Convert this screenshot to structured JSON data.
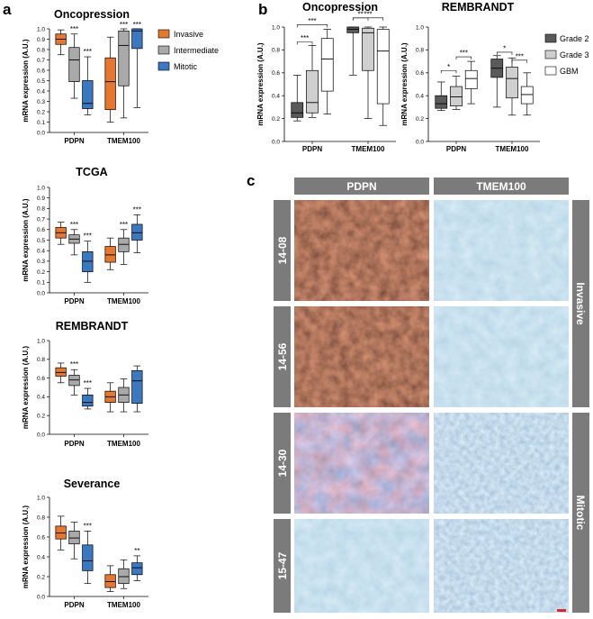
{
  "panels": {
    "a": "a",
    "b": "b",
    "c": "c"
  },
  "y_axis_label": "mRNA expression (A.U.)",
  "legend_a": [
    "Invasive",
    "Intermediate",
    "Mitotic"
  ],
  "legend_b": [
    "Grade 2",
    "Grade 3",
    "GBM"
  ],
  "colors": {
    "invasive": "#e8772e",
    "intermediate": "#a9a9a9",
    "mitotic": "#3b78c2",
    "grade2": "#5a5a5a",
    "grade3": "#cfcfcf",
    "gbm": "#ffffff"
  },
  "chart_data": [
    {
      "type": "box",
      "panel": "a",
      "title": "Oncopression",
      "ylabel": "mRNA expression (A.U.)",
      "ylim": [
        0,
        1.0
      ],
      "yticks": [
        "0.0",
        "0.1",
        "0.2",
        "0.3",
        "0.4",
        "0.5",
        "0.6",
        "0.7",
        "0.8",
        "0.9",
        "1.0"
      ],
      "groups": [
        "PDPN",
        "TMEM100"
      ],
      "series": [
        {
          "name": "Invasive",
          "boxes": [
            {
              "min": 0.75,
              "q1": 0.85,
              "median": 0.9,
              "q3": 0.95,
              "max": 0.99
            },
            {
              "min": 0.1,
              "q1": 0.22,
              "median": 0.49,
              "q3": 0.72,
              "max": 0.92
            }
          ]
        },
        {
          "name": "Intermediate",
          "boxes": [
            {
              "min": 0.33,
              "q1": 0.49,
              "median": 0.7,
              "q3": 0.82,
              "max": 0.95
            },
            {
              "min": 0.14,
              "q1": 0.45,
              "median": 0.84,
              "q3": 0.98,
              "max": 1.0
            }
          ]
        },
        {
          "name": "Mitotic",
          "boxes": [
            {
              "min": 0.17,
              "q1": 0.23,
              "median": 0.28,
              "q3": 0.5,
              "max": 0.73
            },
            {
              "min": 0.24,
              "q1": 0.81,
              "median": 0.98,
              "q3": 1.0,
              "max": 1.0
            }
          ]
        }
      ],
      "annotations": [
        {
          "group": 0,
          "series": 1,
          "text": "***"
        },
        {
          "group": 0,
          "series": 2,
          "text": "***"
        },
        {
          "group": 1,
          "series": 1,
          "text": "***"
        },
        {
          "group": 1,
          "series": 2,
          "text": "***"
        }
      ]
    },
    {
      "type": "box",
      "panel": "a",
      "title": "TCGA",
      "ylabel": "mRNA expression (A.U.)",
      "ylim": [
        0,
        1.0
      ],
      "yticks": [
        "0.0",
        "0.1",
        "0.2",
        "0.3",
        "0.4",
        "0.5",
        "0.6",
        "0.7",
        "0.8",
        "0.9",
        "1.0"
      ],
      "groups": [
        "PDPN",
        "TMEM100"
      ],
      "series": [
        {
          "name": "Invasive",
          "boxes": [
            {
              "min": 0.46,
              "q1": 0.52,
              "median": 0.57,
              "q3": 0.62,
              "max": 0.67
            },
            {
              "min": 0.22,
              "q1": 0.29,
              "median": 0.36,
              "q3": 0.44,
              "max": 0.52
            }
          ]
        },
        {
          "name": "Intermediate",
          "boxes": [
            {
              "min": 0.36,
              "q1": 0.47,
              "median": 0.51,
              "q3": 0.55,
              "max": 0.6
            },
            {
              "min": 0.27,
              "q1": 0.39,
              "median": 0.46,
              "q3": 0.52,
              "max": 0.6
            }
          ]
        },
        {
          "name": "Mitotic",
          "boxes": [
            {
              "min": 0.1,
              "q1": 0.2,
              "median": 0.3,
              "q3": 0.39,
              "max": 0.49
            },
            {
              "min": 0.38,
              "q1": 0.5,
              "median": 0.57,
              "q3": 0.65,
              "max": 0.74
            }
          ]
        }
      ],
      "annotations": [
        {
          "group": 0,
          "series": 1,
          "text": "***"
        },
        {
          "group": 0,
          "series": 2,
          "text": "***"
        },
        {
          "group": 1,
          "series": 1,
          "text": "***"
        },
        {
          "group": 1,
          "series": 2,
          "text": "***"
        }
      ]
    },
    {
      "type": "box",
      "panel": "a",
      "title": "REMBRANDT",
      "ylabel": "mRNA expression (A.U.)",
      "ylim": [
        0,
        1.0
      ],
      "yticks": [
        "0.0",
        "0.2",
        "0.4",
        "0.6",
        "0.8",
        "1.0"
      ],
      "groups": [
        "PDPN",
        "TMEM100"
      ],
      "series": [
        {
          "name": "Invasive",
          "boxes": [
            {
              "min": 0.55,
              "q1": 0.62,
              "median": 0.66,
              "q3": 0.71,
              "max": 0.76
            },
            {
              "min": 0.24,
              "q1": 0.34,
              "median": 0.4,
              "q3": 0.46,
              "max": 0.55
            }
          ]
        },
        {
          "name": "Intermediate",
          "boxes": [
            {
              "min": 0.42,
              "q1": 0.52,
              "median": 0.58,
              "q3": 0.63,
              "max": 0.69
            },
            {
              "min": 0.24,
              "q1": 0.34,
              "median": 0.42,
              "q3": 0.5,
              "max": 0.59
            }
          ]
        },
        {
          "name": "Mitotic",
          "boxes": [
            {
              "min": 0.27,
              "q1": 0.3,
              "median": 0.34,
              "q3": 0.42,
              "max": 0.49
            },
            {
              "min": 0.24,
              "q1": 0.33,
              "median": 0.57,
              "q3": 0.68,
              "max": 0.73
            }
          ]
        }
      ],
      "annotations": [
        {
          "group": 0,
          "series": 1,
          "text": "***"
        },
        {
          "group": 0,
          "series": 2,
          "text": "***"
        }
      ]
    },
    {
      "type": "box",
      "panel": "a",
      "title": "Severance",
      "ylabel": "mRNA expression (A.U.)",
      "ylim": [
        0,
        1.0
      ],
      "yticks": [
        "0.0",
        "0.2",
        "0.4",
        "0.6",
        "0.8",
        "1.0"
      ],
      "groups": [
        "PDPN",
        "TMEM100"
      ],
      "series": [
        {
          "name": "Invasive",
          "boxes": [
            {
              "min": 0.47,
              "q1": 0.58,
              "median": 0.64,
              "q3": 0.71,
              "max": 0.81
            },
            {
              "min": 0.05,
              "q1": 0.09,
              "median": 0.15,
              "q3": 0.22,
              "max": 0.31
            }
          ]
        },
        {
          "name": "Intermediate",
          "boxes": [
            {
              "min": 0.38,
              "q1": 0.53,
              "median": 0.59,
              "q3": 0.66,
              "max": 0.75
            },
            {
              "min": 0.08,
              "q1": 0.13,
              "median": 0.2,
              "q3": 0.28,
              "max": 0.37
            }
          ]
        },
        {
          "name": "Mitotic",
          "boxes": [
            {
              "min": 0.13,
              "q1": 0.26,
              "median": 0.36,
              "q3": 0.52,
              "max": 0.66
            },
            {
              "min": 0.16,
              "q1": 0.22,
              "median": 0.29,
              "q3": 0.34,
              "max": 0.41
            }
          ]
        }
      ],
      "annotations": [
        {
          "group": 0,
          "series": 2,
          "text": "***"
        },
        {
          "group": 1,
          "series": 2,
          "text": "**"
        }
      ]
    },
    {
      "type": "box",
      "panel": "b",
      "title": "Oncopression",
      "ylabel": "mRNA expression (A.U.)",
      "ylim": [
        0,
        1.0
      ],
      "yticks": [
        "0.0",
        "0.2",
        "0.4",
        "0.6",
        "0.8",
        "1.0"
      ],
      "groups": [
        "PDPN",
        "TMEM100"
      ],
      "series": [
        {
          "name": "Grade 2",
          "boxes": [
            {
              "min": 0.18,
              "q1": 0.21,
              "median": 0.25,
              "q3": 0.34,
              "max": 0.58
            },
            {
              "min": 0.58,
              "q1": 0.95,
              "median": 0.98,
              "q3": 1.0,
              "max": 1.0
            }
          ]
        },
        {
          "name": "Grade 3",
          "boxes": [
            {
              "min": 0.21,
              "q1": 0.25,
              "median": 0.34,
              "q3": 0.62,
              "max": 0.84
            },
            {
              "min": 0.2,
              "q1": 0.62,
              "median": 0.95,
              "q3": 0.99,
              "max": 1.0
            }
          ]
        },
        {
          "name": "GBM",
          "boxes": [
            {
              "min": 0.24,
              "q1": 0.44,
              "median": 0.72,
              "q3": 0.9,
              "max": 0.98
            },
            {
              "min": 0.14,
              "q1": 0.33,
              "median": 0.79,
              "q3": 0.98,
              "max": 1.0
            }
          ]
        }
      ],
      "brackets": [
        {
          "group": 0,
          "from": 0,
          "to": 1,
          "level": 0.87,
          "text": "***"
        },
        {
          "group": 0,
          "from": 0,
          "to": 2,
          "level": 1.02,
          "text": "***"
        },
        {
          "group": 1,
          "from": 0,
          "to": 1,
          "level": 1.08,
          "text": "**"
        },
        {
          "group": 1,
          "from": 0,
          "to": 2,
          "level": 1.08,
          "text": "***"
        }
      ]
    },
    {
      "type": "box",
      "panel": "b",
      "title": "REMBRANDT",
      "ylabel": "mRNA expression (A.U.)",
      "ylim": [
        0,
        1.0
      ],
      "yticks": [
        "0.0",
        "0.2",
        "0.4",
        "0.6",
        "0.8",
        "1.0"
      ],
      "groups": [
        "PDPN",
        "TMEM100"
      ],
      "series": [
        {
          "name": "Grade 2",
          "boxes": [
            {
              "min": 0.27,
              "q1": 0.29,
              "median": 0.33,
              "q3": 0.4,
              "max": 0.52
            },
            {
              "min": 0.3,
              "q1": 0.56,
              "median": 0.64,
              "q3": 0.72,
              "max": 0.75
            }
          ]
        },
        {
          "name": "Grade 3",
          "boxes": [
            {
              "min": 0.28,
              "q1": 0.31,
              "median": 0.39,
              "q3": 0.48,
              "max": 0.57
            },
            {
              "min": 0.23,
              "q1": 0.38,
              "median": 0.55,
              "q3": 0.65,
              "max": 0.73
            }
          ]
        },
        {
          "name": "GBM",
          "boxes": [
            {
              "min": 0.33,
              "q1": 0.46,
              "median": 0.55,
              "q3": 0.62,
              "max": 0.7
            },
            {
              "min": 0.23,
              "q1": 0.33,
              "median": 0.41,
              "q3": 0.48,
              "max": 0.6
            }
          ]
        }
      ],
      "brackets": [
        {
          "group": 0,
          "from": 0,
          "to": 1,
          "level": 0.62,
          "text": "*"
        },
        {
          "group": 0,
          "from": 1,
          "to": 2,
          "level": 0.74,
          "text": "***"
        },
        {
          "group": 1,
          "from": 0,
          "to": 1,
          "level": 0.78,
          "text": "*"
        },
        {
          "group": 1,
          "from": 1,
          "to": 2,
          "level": 0.71,
          "text": "***"
        }
      ]
    }
  ],
  "micro": {
    "columns": [
      "PDPN",
      "TMEM100"
    ],
    "rows": [
      "14-08",
      "14-56",
      "14-30",
      "15-47"
    ],
    "categories": [
      "Invasive",
      "Mitotic"
    ]
  }
}
